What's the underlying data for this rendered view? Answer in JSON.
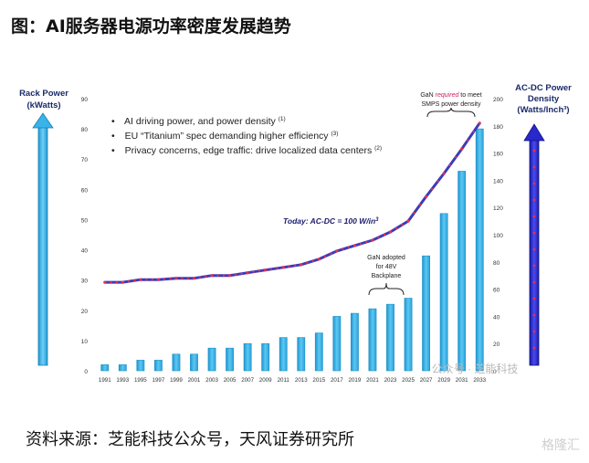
{
  "page": {
    "title": "图：AI服务器电源功率密度发展趋势",
    "source": "资料来源：芝能科技公众号，天风证券研究所",
    "watermark": "格隆汇",
    "inner_watermark": "公众号 · 芝能科技"
  },
  "chart_data": {
    "type": "bar+line",
    "left_axis_label": [
      "Rack Power",
      "(kWatts)"
    ],
    "right_axis_label": [
      "AC-DC Power",
      "Density",
      "(Watts/Inch³)"
    ],
    "categories": [
      "1991",
      "1993",
      "1995",
      "1997",
      "1999",
      "2001",
      "2003",
      "2005",
      "2007",
      "2009",
      "2011",
      "2013",
      "2015",
      "2017",
      "2019",
      "2021",
      "2023",
      "2025",
      "2027",
      "2029",
      "2031",
      "2033"
    ],
    "bars": {
      "axis": "left",
      "ylim": [
        0,
        90
      ],
      "ticks": [
        0,
        10,
        20,
        30,
        40,
        50,
        60,
        70,
        80,
        90
      ],
      "values": [
        2,
        2,
        3.5,
        3.5,
        5.5,
        5.5,
        7.5,
        7.5,
        9,
        9,
        11,
        11,
        12.5,
        18,
        19,
        20.5,
        22,
        24,
        38,
        52,
        66,
        80
      ]
    },
    "line": {
      "axis": "right",
      "ylim": [
        0,
        200
      ],
      "ticks": [
        0,
        20,
        40,
        60,
        80,
        100,
        120,
        140,
        160,
        180,
        200
      ],
      "values": [
        65,
        65,
        67,
        67,
        68,
        68,
        70,
        70,
        72,
        74,
        76,
        78,
        82,
        88,
        92,
        96,
        102,
        110,
        128,
        145,
        163,
        182
      ]
    },
    "bullets": [
      "AI driving power, and power density",
      "EU “Titanium” spec demanding higher efficiency",
      "Privacy concerns, edge traffic: drive localized data centers"
    ],
    "bullet_refs": [
      "(1)",
      "(3)",
      "(2)"
    ],
    "annotations": {
      "today_prefix": "Today: AC-DC = 100 W/in",
      "today_sup": "3",
      "gan48_line1": "GaN adopted",
      "gan48_line2": "for 48V",
      "gan48_line3": "Backplane",
      "gan_req_a": "GaN ",
      "gan_req_b": "required",
      "gan_req_c": " to meet",
      "gan_req_line2": "SMPS power density"
    },
    "colors": {
      "bar": "#39b3e8",
      "bar_edge": "#1c8fc6",
      "line": "#3f3ab8",
      "line_marker": "#e0334f",
      "left_arrow": "#2aa9e0",
      "right_arrow": "#2222cc"
    }
  }
}
